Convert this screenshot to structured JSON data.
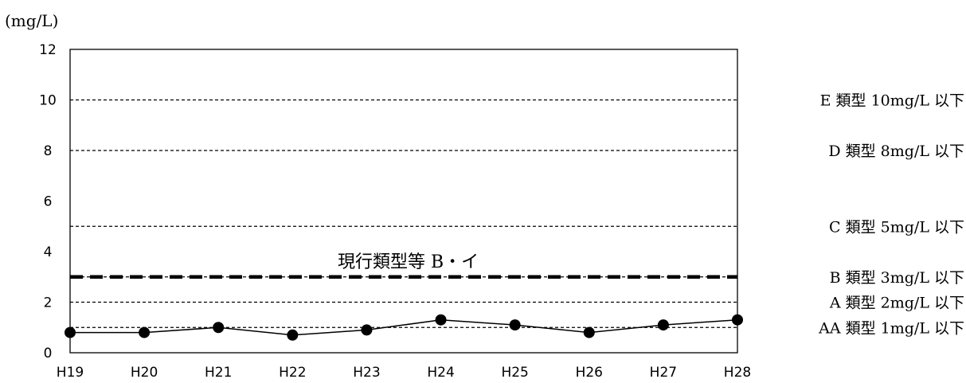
{
  "chart_data": {
    "type": "line",
    "unit_label": "(mg/L)",
    "categories": [
      "H19",
      "H20",
      "H21",
      "H22",
      "H23",
      "H24",
      "H25",
      "H26",
      "H27",
      "H28"
    ],
    "series": [
      {
        "values": [
          0.8,
          0.8,
          1.0,
          0.7,
          0.9,
          1.3,
          1.1,
          0.8,
          1.1,
          1.3
        ]
      }
    ],
    "ylim": [
      0,
      12
    ],
    "yticks": [
      0,
      2,
      4,
      6,
      8,
      10,
      12
    ],
    "grid": false,
    "standards": [
      {
        "value": 10,
        "label": "E 類型 10mg/L 以下"
      },
      {
        "value": 8,
        "label": "D 類型 8mg/L 以下"
      },
      {
        "value": 5,
        "label": "C 類型 5mg/L 以下"
      },
      {
        "value": 3,
        "label": "B 類型 3mg/L 以下"
      },
      {
        "value": 2,
        "label": "A 類型 2mg/L 以下"
      },
      {
        "value": 1,
        "label": "AA 類型 1mg/L 以下"
      }
    ],
    "current_class": {
      "value": 3,
      "label": "現行類型等 B・イ"
    }
  }
}
